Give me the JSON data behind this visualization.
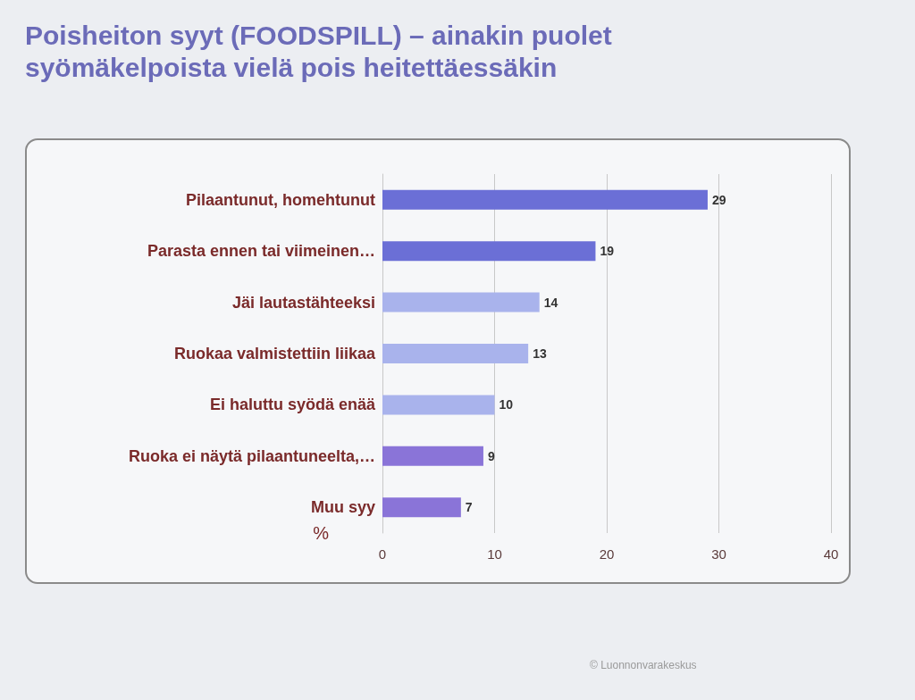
{
  "chart_data": {
    "type": "bar",
    "orientation": "horizontal",
    "title": "Poisheiton syyt (FOODSPILL) – ainakin puolet syömäkelpoista vielä pois heitettäessäkin",
    "categories": [
      "Pilaantunut, homehtunut",
      "Parasta ennen tai viimeinen…",
      "Jäi lautastähteeksi",
      "Ruokaa valmistettiin liikaa",
      "Ei haluttu syödä enää",
      "Ruoka ei näytä pilaantuneelta,…",
      "Muu syy"
    ],
    "values": [
      29,
      19,
      14,
      13,
      10,
      9,
      7
    ],
    "colors": [
      "#6b6fd6",
      "#6b6fd6",
      "#a9b3ec",
      "#a9b3ec",
      "#a9b3ec",
      "#8a74d8",
      "#8a74d8"
    ],
    "xlim": [
      0,
      40
    ],
    "xticks": [
      0,
      10,
      20,
      30,
      40
    ],
    "xlabel": "%",
    "grid": "x",
    "data_labels": true,
    "annotations": [
      "© Luonnonvarakeskus"
    ]
  }
}
